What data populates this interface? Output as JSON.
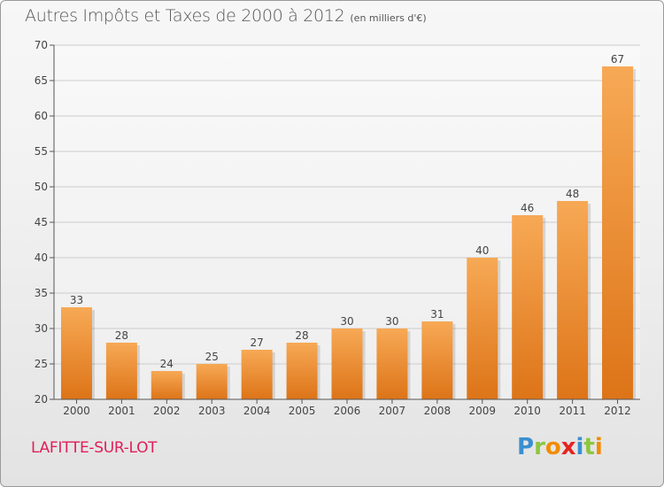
{
  "title": "Autres Impôts et Taxes de 2000 à 2012",
  "unit": "(en milliers d'€)",
  "commune": "LAFITTE-SUR-LOT",
  "logo": {
    "text": "Proxiti",
    "letters": [
      {
        "char": "P",
        "color": "#3a8fd0"
      },
      {
        "char": "r",
        "color": "#8dc63f"
      },
      {
        "char": "o",
        "color": "#f28c00"
      },
      {
        "char": "x",
        "color": "#e52421"
      },
      {
        "char": "i",
        "color": "#3a8fd0"
      },
      {
        "char": "t",
        "color": "#8dc63f"
      },
      {
        "char": "i",
        "color": "#f28c00"
      }
    ]
  },
  "colors": {
    "bar_top": "#f7a955",
    "bar_bottom": "#dd7418",
    "grid": "#cccccc",
    "axis_text": "#444444",
    "commune": "#e01e5a"
  },
  "chart_data": {
    "type": "bar",
    "title": "Autres Impôts et Taxes de 2000 à 2012",
    "xlabel": "",
    "ylabel": "",
    "categories": [
      "2000",
      "2001",
      "2002",
      "2003",
      "2004",
      "2005",
      "2006",
      "2007",
      "2008",
      "2009",
      "2010",
      "2011",
      "2012"
    ],
    "values": [
      33,
      28,
      24,
      25,
      27,
      28,
      30,
      30,
      31,
      40,
      46,
      48,
      67
    ],
    "ylim": [
      20,
      70
    ],
    "yticks": [
      20,
      25,
      30,
      35,
      40,
      45,
      50,
      55,
      60,
      65,
      70
    ],
    "grid": true,
    "data_labels": true
  }
}
